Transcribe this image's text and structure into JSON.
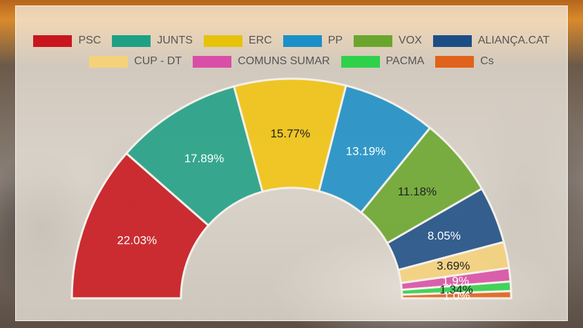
{
  "chart_data": {
    "type": "pie",
    "subtype": "half-donut",
    "title": "",
    "legend_position": "top",
    "categories": [
      "PSC",
      "JUNTS",
      "ERC",
      "PP",
      "VOX",
      "ALIANÇA.CAT",
      "CUP - DT",
      "COMUNS SUMAR",
      "PACMA",
      "Cs"
    ],
    "values": [
      22.03,
      17.89,
      15.77,
      13.19,
      11.18,
      8.05,
      3.69,
      1.9,
      1.34,
      1.0
    ],
    "labels": [
      "22.03%",
      "17.89%",
      "15.77%",
      "13.19%",
      "11.18%",
      "8.05%",
      "3.69%",
      "1.9%",
      "1.34%",
      "1.0%"
    ],
    "colors": [
      "#c8161d",
      "#1fa085",
      "#f1c40f",
      "#1b8fc7",
      "#6aa62d",
      "#1c4e86",
      "#f5d27a",
      "#d94ea6",
      "#2ed14a",
      "#e0621b"
    ],
    "label_colors": [
      "#ffffff",
      "#ffffff",
      "#222222",
      "#ffffff",
      "#222222",
      "#ffffff",
      "#222222",
      "#ffffff",
      "#222222",
      "#ffffff"
    ]
  },
  "legend": {
    "rows": [
      [
        {
          "label": "PSC",
          "color": "#c8161d"
        },
        {
          "label": "JUNTS",
          "color": "#1fa085"
        },
        {
          "label": "ERC",
          "color": "#e6c20b"
        },
        {
          "label": "PP",
          "color": "#1b8fc7"
        },
        {
          "label": "VOX",
          "color": "#6aa62d"
        },
        {
          "label": "ALIANÇA.CAT",
          "color": "#1c4e86"
        }
      ],
      [
        {
          "label": "CUP - DT",
          "color": "#f5d27a"
        },
        {
          "label": "COMUNS SUMAR",
          "color": "#d94ea6"
        },
        {
          "label": "PACMA",
          "color": "#2ed14a"
        },
        {
          "label": "Cs",
          "color": "#e0621b"
        }
      ]
    ]
  }
}
